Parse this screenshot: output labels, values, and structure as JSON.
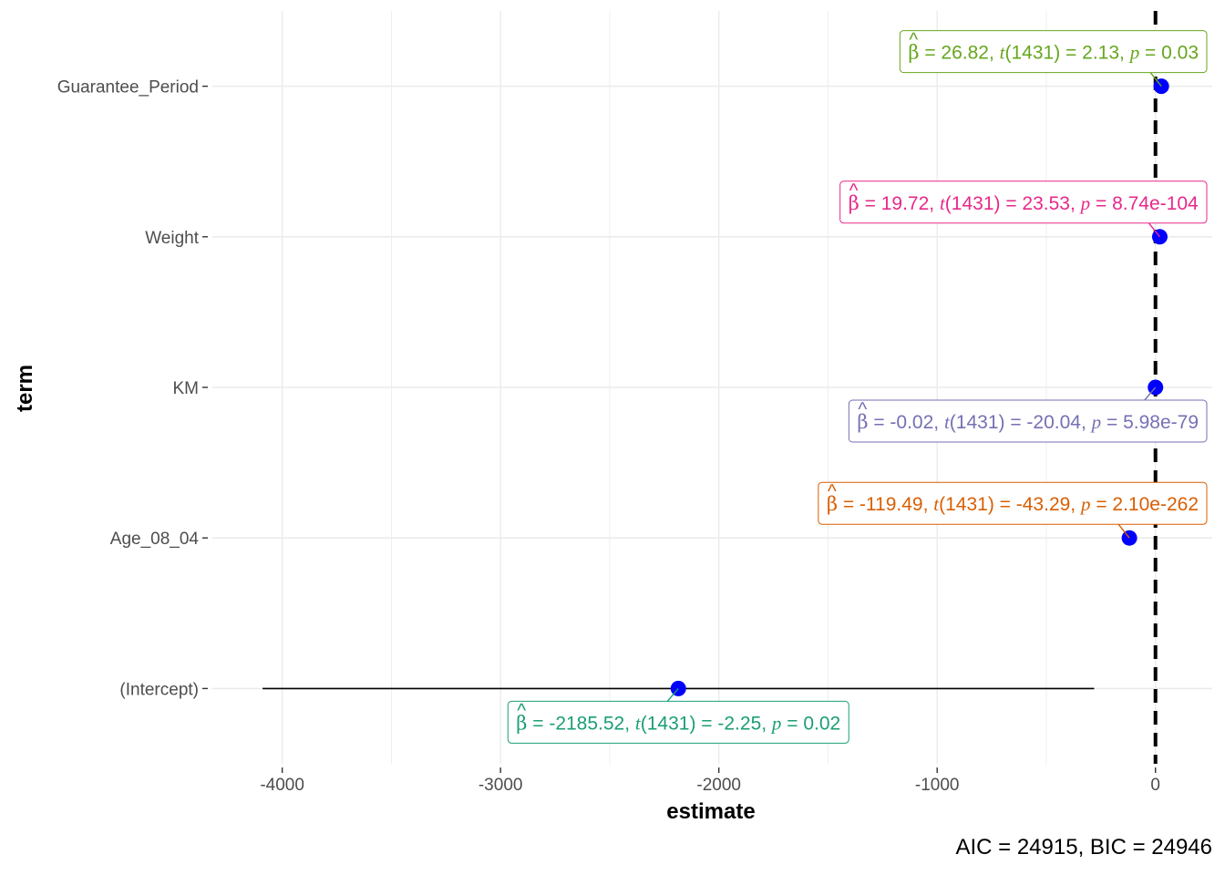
{
  "chart_data": {
    "type": "scatter",
    "xlabel": "estimate",
    "ylabel": "term",
    "xlim": [
      -4320,
      260
    ],
    "x_ticks": [
      -4000,
      -3000,
      -2000,
      -1000,
      0
    ],
    "x_tick_labels": [
      "-4000",
      "-3000",
      "-2000",
      "-1000",
      "0"
    ],
    "reference_line": 0,
    "grid": true,
    "point_color": "#0000FF",
    "terms": [
      {
        "term": "Guarantee_Period",
        "estimate": 26.82,
        "ci": [
          2.1,
          51.5
        ],
        "label": {
          "beta": "26.82",
          "t": "2.13",
          "p": "0.03",
          "df": "1431",
          "color": "#66A61E",
          "side": "above"
        }
      },
      {
        "term": "Weight",
        "estimate": 19.72,
        "ci": [
          18.1,
          21.4
        ],
        "label": {
          "beta": "19.72",
          "t": "23.53",
          "p": "8.74e-104",
          "df": "1431",
          "color": "#E7298A",
          "side": "above"
        }
      },
      {
        "term": "KM",
        "estimate": -0.02,
        "ci": [
          -0.02,
          -0.02
        ],
        "label": {
          "beta": "-0.02",
          "t": "-20.04",
          "p": "5.98e-79",
          "df": "1431",
          "color": "#7570B3",
          "side": "below"
        }
      },
      {
        "term": "Age_08_04",
        "estimate": -119.49,
        "ci": [
          -124.9,
          -114.1
        ],
        "label": {
          "beta": "-119.49",
          "t": "-43.29",
          "p": "2.10e-262",
          "df": "1431",
          "color": "#D95F02",
          "side": "above"
        }
      },
      {
        "term": "(Intercept)",
        "estimate": -2185.52,
        "ci": [
          -4090,
          -281
        ],
        "label": {
          "beta": "-2185.52",
          "t": "-2.25",
          "p": "0.02",
          "df": "1431",
          "color": "#1B9E77",
          "side": "below"
        }
      }
    ],
    "caption": "AIC = 24915, BIC = 24946"
  }
}
